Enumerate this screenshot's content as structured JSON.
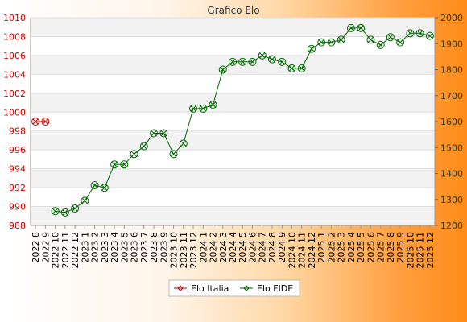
{
  "chart_data": {
    "type": "line",
    "title": "Grafico Elo",
    "categories": [
      "2022 8",
      "2022 9",
      "2022 10",
      "2022 11",
      "2022 12",
      "2023 1",
      "2023 2",
      "2023 3",
      "2023 4",
      "2023 5",
      "2023 6",
      "2023 7",
      "2023 8",
      "2023 9",
      "2023 10",
      "2023 11",
      "2023 12",
      "2024 1",
      "2024 2",
      "2024 3",
      "2024 4",
      "2024 5",
      "2024 6",
      "2024 7",
      "2024 8",
      "2024 9",
      "2024 10",
      "2024 11",
      "2024 12",
      "2025 1",
      "2025 2",
      "2025 3",
      "2025 4",
      "2025 5",
      "2025 6",
      "2025 7",
      "2025 8",
      "2025 9",
      "2025 10",
      "2025 11",
      "2025 12"
    ],
    "y_left": {
      "min": 988,
      "max": 1010,
      "ticks": [
        988,
        990,
        992,
        994,
        996,
        998,
        1000,
        1002,
        1004,
        1006,
        1008,
        1010
      ],
      "color": "#cc0000"
    },
    "y_right": {
      "min": 1200,
      "max": 2000,
      "ticks": [
        1200,
        1300,
        1400,
        1500,
        1600,
        1700,
        1800,
        1900,
        2000
      ],
      "color": "#333300"
    },
    "grid": true,
    "legend_position": "bottom",
    "series": [
      {
        "name": "Elo Italia",
        "axis": "left",
        "color": "#cc0000",
        "values": [
          999,
          999,
          null,
          null,
          null,
          null,
          null,
          null,
          null,
          null,
          null,
          null,
          null,
          null,
          null,
          null,
          null,
          null,
          null,
          null,
          null,
          null,
          null,
          null,
          null,
          null,
          null,
          null,
          null,
          null,
          null,
          null,
          null,
          null,
          null,
          null,
          null,
          null,
          null,
          null,
          null
        ]
      },
      {
        "name": "Elo FIDE",
        "axis": "right",
        "color": "#006600",
        "values": [
          null,
          null,
          1255,
          1250,
          1265,
          1295,
          1355,
          1345,
          1435,
          1435,
          1475,
          1505,
          1555,
          1555,
          1475,
          1515,
          1650,
          1650,
          1665,
          1800,
          1830,
          1830,
          1830,
          1855,
          1840,
          1830,
          1805,
          1805,
          1880,
          1905,
          1905,
          1915,
          1960,
          1960,
          1915,
          1895,
          1925,
          1905,
          1940,
          1940,
          1930
        ]
      }
    ]
  }
}
